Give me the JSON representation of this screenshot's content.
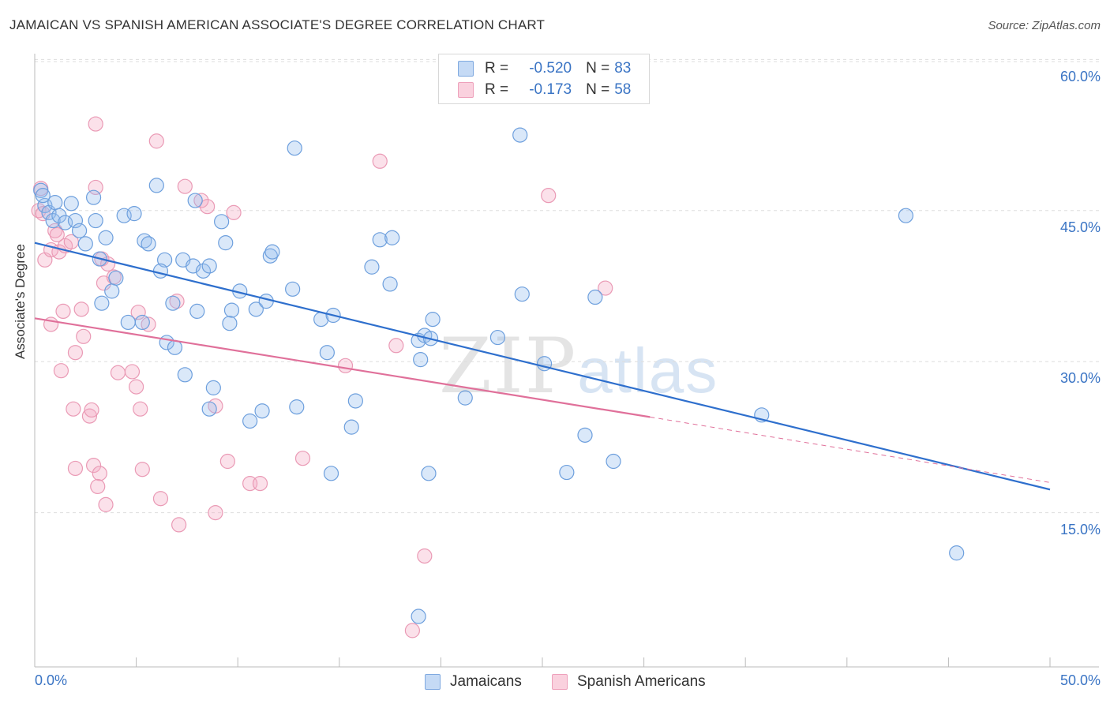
{
  "header": {
    "title": "JAMAICAN VS SPANISH AMERICAN ASSOCIATE'S DEGREE CORRELATION CHART",
    "source": "Source: ZipAtlas.com"
  },
  "legend": {
    "rows": [
      {
        "r_label": "R =",
        "r_value": "-0.520",
        "n_label": "N =",
        "n_value": "83",
        "color": "#a9c8ef"
      },
      {
        "r_label": "R =",
        "r_value": "-0.173",
        "n_label": "N =",
        "n_value": "58",
        "color": "#f4b6c8"
      }
    ]
  },
  "bottom_legend": {
    "jamaicans": "Jamaicans",
    "spanish": "Spanish Americans"
  },
  "watermark": {
    "zip": "ZIP",
    "atlas": "atlas"
  },
  "chart_data": {
    "type": "scatter",
    "title": "JAMAICAN VS SPANISH AMERICAN ASSOCIATE'S DEGREE CORRELATION CHART",
    "xlabel": "",
    "ylabel": "Associate's Degree",
    "xlim": [
      0,
      50
    ],
    "ylim": [
      0,
      62
    ],
    "x_tick_labels": [
      "0.0%",
      "50.0%"
    ],
    "y_ticks": [
      15,
      30,
      45,
      60
    ],
    "y_tick_labels": [
      "15.0%",
      "30.0%",
      "45.0%",
      "60.0%"
    ],
    "grid": true,
    "legend_position": "top-center",
    "colors": {
      "jamaicans": "#4a86d4",
      "spanish": "#e67fa3",
      "jam_line": "#2e6fcd",
      "spa_line": "#e0709a"
    },
    "series": [
      {
        "name": "Jamaicans",
        "r": -0.52,
        "n": 83,
        "trend": {
          "x0": 0,
          "y0": 41.8,
          "x1": 50,
          "y1": 17.3
        },
        "points": [
          [
            0.3,
            47.0
          ],
          [
            0.5,
            45.5
          ],
          [
            0.4,
            46.5
          ],
          [
            0.7,
            44.8
          ],
          [
            1.0,
            45.8
          ],
          [
            0.9,
            44.0
          ],
          [
            1.2,
            44.5
          ],
          [
            1.5,
            43.8
          ],
          [
            1.8,
            45.7
          ],
          [
            2.0,
            44.0
          ],
          [
            2.2,
            43.0
          ],
          [
            2.5,
            41.7
          ],
          [
            2.9,
            46.3
          ],
          [
            3.0,
            44.0
          ],
          [
            3.5,
            42.3
          ],
          [
            3.2,
            40.2
          ],
          [
            4.0,
            38.3
          ],
          [
            3.8,
            37.0
          ],
          [
            3.3,
            35.8
          ],
          [
            4.4,
            44.5
          ],
          [
            4.9,
            44.7
          ],
          [
            5.4,
            42.0
          ],
          [
            5.6,
            41.7
          ],
          [
            6.0,
            47.5
          ],
          [
            6.4,
            40.1
          ],
          [
            6.2,
            39.0
          ],
          [
            6.8,
            35.8
          ],
          [
            7.3,
            40.1
          ],
          [
            7.8,
            39.5
          ],
          [
            7.9,
            46.0
          ],
          [
            8.3,
            39.0
          ],
          [
            8.6,
            39.5
          ],
          [
            9.4,
            41.8
          ],
          [
            9.2,
            43.9
          ],
          [
            10.1,
            37.0
          ],
          [
            9.7,
            35.1
          ],
          [
            10.9,
            35.2
          ],
          [
            11.4,
            36.0
          ],
          [
            11.6,
            40.5
          ],
          [
            11.7,
            40.9
          ],
          [
            12.7,
            37.2
          ],
          [
            12.8,
            51.2
          ],
          [
            4.6,
            33.9
          ],
          [
            5.3,
            33.9
          ],
          [
            6.5,
            31.9
          ],
          [
            6.9,
            31.4
          ],
          [
            7.4,
            28.7
          ],
          [
            8.0,
            35.0
          ],
          [
            8.8,
            27.4
          ],
          [
            8.6,
            25.3
          ],
          [
            9.6,
            33.8
          ],
          [
            10.6,
            24.1
          ],
          [
            11.2,
            25.1
          ],
          [
            12.9,
            25.5
          ],
          [
            14.1,
            34.2
          ],
          [
            14.7,
            34.6
          ],
          [
            14.4,
            30.9
          ],
          [
            15.8,
            26.1
          ],
          [
            15.6,
            23.5
          ],
          [
            14.6,
            18.9
          ],
          [
            16.6,
            39.4
          ],
          [
            17.0,
            42.1
          ],
          [
            17.6,
            42.3
          ],
          [
            17.5,
            37.7
          ],
          [
            18.9,
            32.1
          ],
          [
            19.2,
            32.6
          ],
          [
            19.5,
            32.3
          ],
          [
            19.6,
            34.2
          ],
          [
            19.0,
            30.2
          ],
          [
            19.4,
            18.9
          ],
          [
            21.2,
            26.4
          ],
          [
            22.8,
            32.4
          ],
          [
            24.0,
            36.7
          ],
          [
            23.9,
            52.5
          ],
          [
            25.1,
            29.8
          ],
          [
            26.2,
            19.0
          ],
          [
            27.1,
            22.7
          ],
          [
            27.6,
            36.4
          ],
          [
            28.5,
            20.1
          ],
          [
            35.8,
            24.7
          ],
          [
            42.9,
            44.5
          ],
          [
            45.4,
            11.0
          ],
          [
            18.9,
            4.7
          ]
        ]
      },
      {
        "name": "Spanish Americans",
        "r": -0.173,
        "n": 58,
        "trend": {
          "x0": 0,
          "y0": 34.3,
          "x1": 30.3,
          "y1": 24.5,
          "x_dash_end": 50,
          "y_dash_end": 18.0
        },
        "points": [
          [
            0.3,
            47.2
          ],
          [
            0.2,
            45.0
          ],
          [
            0.4,
            44.7
          ],
          [
            0.5,
            40.1
          ],
          [
            0.8,
            41.1
          ],
          [
            1.0,
            43.0
          ],
          [
            1.1,
            42.6
          ],
          [
            1.2,
            40.9
          ],
          [
            1.5,
            41.5
          ],
          [
            1.8,
            41.9
          ],
          [
            0.8,
            33.7
          ],
          [
            1.4,
            35.0
          ],
          [
            1.3,
            29.1
          ],
          [
            1.9,
            25.3
          ],
          [
            2.0,
            19.4
          ],
          [
            2.0,
            30.9
          ],
          [
            2.3,
            35.2
          ],
          [
            2.4,
            32.5
          ],
          [
            2.7,
            24.6
          ],
          [
            2.8,
            25.2
          ],
          [
            2.9,
            19.7
          ],
          [
            3.2,
            18.9
          ],
          [
            3.1,
            17.6
          ],
          [
            3.5,
            15.8
          ],
          [
            3.3,
            40.2
          ],
          [
            3.6,
            39.7
          ],
          [
            3.4,
            37.8
          ],
          [
            3.9,
            38.4
          ],
          [
            4.1,
            28.9
          ],
          [
            4.8,
            29.0
          ],
          [
            5.0,
            27.5
          ],
          [
            5.2,
            25.3
          ],
          [
            5.3,
            19.3
          ],
          [
            5.1,
            34.9
          ],
          [
            5.6,
            33.7
          ],
          [
            6.0,
            51.9
          ],
          [
            6.2,
            16.4
          ],
          [
            7.0,
            36.0
          ],
          [
            7.1,
            13.8
          ],
          [
            7.4,
            47.4
          ],
          [
            8.2,
            46.0
          ],
          [
            8.5,
            45.4
          ],
          [
            8.9,
            25.6
          ],
          [
            8.9,
            15.0
          ],
          [
            9.5,
            20.1
          ],
          [
            9.8,
            44.8
          ],
          [
            10.6,
            17.9
          ],
          [
            11.1,
            17.9
          ],
          [
            13.2,
            20.4
          ],
          [
            15.3,
            29.6
          ],
          [
            17.0,
            49.9
          ],
          [
            17.8,
            31.6
          ],
          [
            19.2,
            10.7
          ],
          [
            18.6,
            3.3
          ],
          [
            3.0,
            53.6
          ],
          [
            3.0,
            47.3
          ],
          [
            25.3,
            46.5
          ],
          [
            28.1,
            37.3
          ]
        ]
      }
    ]
  }
}
